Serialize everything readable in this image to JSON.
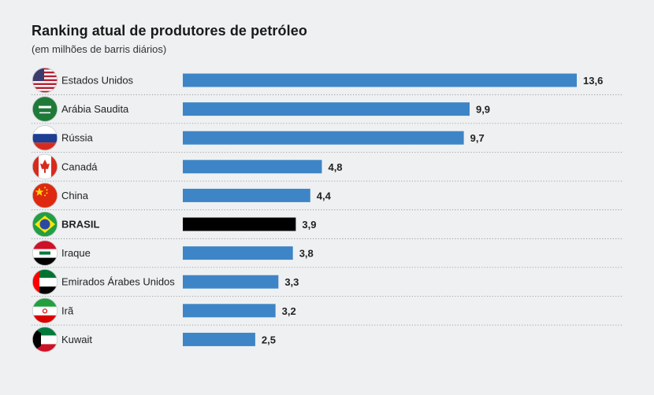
{
  "chart_data": {
    "type": "bar",
    "orientation": "horizontal",
    "title": "Ranking atual de produtores de petróleo",
    "subtitle": "(em milhões de barris diários)",
    "categories": [
      "Estados Unidos",
      "Arábia Saudita",
      "Rússia",
      "Canadá",
      "China",
      "BRASIL",
      "Iraque",
      "Emirados Árabes Unidos",
      "Irã",
      "Kuwait"
    ],
    "values": [
      13.6,
      9.9,
      9.7,
      4.8,
      4.4,
      3.9,
      3.8,
      3.3,
      3.2,
      2.5
    ],
    "value_labels": [
      "13,6",
      "9,9",
      "9,7",
      "4,8",
      "4,4",
      "3,9",
      "3,8",
      "3,3",
      "3,2",
      "2,5"
    ],
    "flags": [
      "us-flag-icon",
      "saudi-arabia-flag-icon",
      "russia-flag-icon",
      "canada-flag-icon",
      "china-flag-icon",
      "brazil-flag-icon",
      "iraq-flag-icon",
      "uae-flag-icon",
      "iran-flag-icon",
      "kuwait-flag-icon"
    ],
    "highlight": "BRASIL",
    "xlim": [
      0,
      13.6
    ],
    "grid": false,
    "colors": {
      "bar": "#3d85c6",
      "highlight": "#000000",
      "background": "#eef0f2"
    }
  }
}
